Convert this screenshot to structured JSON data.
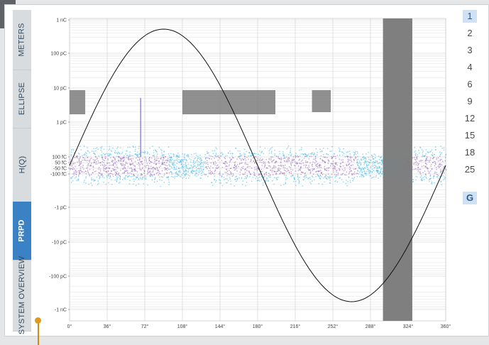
{
  "tabs": [
    {
      "label": "METERS",
      "active": false
    },
    {
      "label": "ELLIPSE",
      "active": false
    },
    {
      "label": "H(Q)",
      "active": false
    },
    {
      "label": "PRPD",
      "active": true
    },
    {
      "label": "SYSTEM OVERVIEW",
      "active": false
    }
  ],
  "scale_items": [
    "1",
    "2",
    "3",
    "4",
    "6",
    "9",
    "12",
    "15",
    "18",
    "25"
  ],
  "scale_active_index": 0,
  "g_button": "G",
  "colors": {
    "accent": "#3b82c4",
    "cloud_outer": "#36b6e6",
    "cloud_inner": "#8a58b0",
    "band": "#7d7d7d",
    "marker": "#e09a1f"
  },
  "chart_data": {
    "type": "scatter",
    "title": "",
    "xlabel": "",
    "ylabel": "",
    "x_ticks": [
      "0°",
      "36°",
      "72°",
      "108°",
      "144°",
      "180°",
      "216°",
      "252°",
      "288°",
      "324°",
      "360°"
    ],
    "xlim": [
      0,
      360
    ],
    "y_scale": "symmetric-log",
    "y_ticks": [
      "1 nC",
      "100 pC",
      "10 pC",
      "1 pC",
      "100 fC",
      "50 fC",
      "-50 fC",
      "-100 fC",
      "-1 pC",
      "-10 pC",
      "-100 pC",
      "-1 nC"
    ],
    "grid": true,
    "reference_sine": {
      "amplitude": "1 nC",
      "period_deg": 360,
      "peak_deg": 90,
      "trough_deg": 270
    },
    "gray_blocks": [
      {
        "x": [
          0,
          15
        ],
        "y": [
          "2 pC",
          "8 pC"
        ]
      },
      {
        "x": [
          108,
          197
        ],
        "y": [
          "2 pC",
          "8 pC"
        ]
      },
      {
        "x": [
          232,
          250
        ],
        "y": [
          "2.5 pC",
          "8 pC"
        ]
      },
      {
        "x": [
          300,
          328
        ],
        "y": [
          "-1 nC",
          "1 nC"
        ]
      }
    ],
    "pd_cloud": {
      "x": [
        0,
        360
      ],
      "y": [
        "-100 fC",
        "100 fC"
      ],
      "dense_bands": [
        [
          0,
          95
        ],
        [
          130,
          275
        ],
        [
          320,
          360
        ]
      ]
    },
    "spike": {
      "x": 68,
      "y": "5 pC"
    }
  }
}
